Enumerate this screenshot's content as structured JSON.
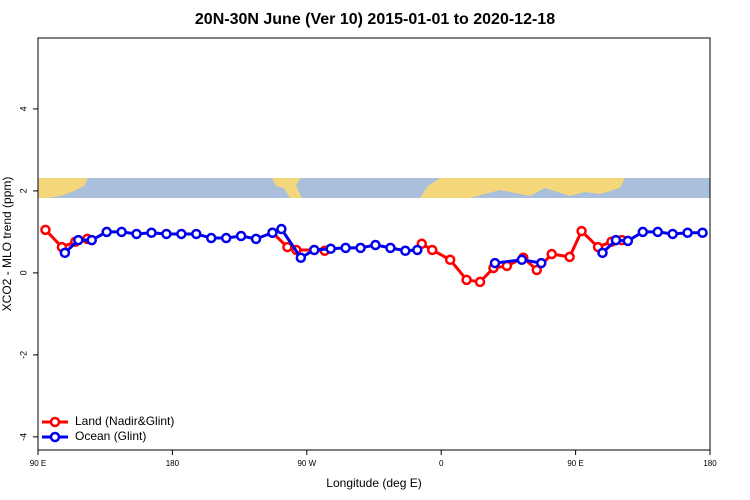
{
  "chart_data": {
    "type": "line",
    "title": "20N-30N June (Ver 10)   2015-01-01 to 2020-12-18",
    "xlabel": "Longitude (deg E)",
    "ylabel": "XCO2 - MLO trend (ppm)",
    "xlim": [
      90,
      540
    ],
    "ylim": [
      -4.32,
      5.73
    ],
    "xticks": [
      {
        "value": 90,
        "label": "90 E"
      },
      180,
      {
        "value": 270,
        "label": "90 W"
      },
      {
        "value": 360,
        "label": "0"
      },
      {
        "value": 450,
        "label": "90 E"
      },
      {
        "value": 540,
        "label": "180"
      }
    ],
    "yticks": [
      -4,
      -2,
      0,
      2,
      4
    ],
    "legend": "bottom-left",
    "series": [
      {
        "name": "Land (Nadir&Glint)",
        "color": "#ff0000",
        "x": [
          95,
          106,
          115,
          123,
          null,
          247,
          257,
          263,
          275,
          282,
          null,
          347,
          354,
          366,
          377,
          386,
          395,
          404,
          415,
          424,
          434,
          446,
          454,
          465,
          474,
          481
        ],
        "values": [
          1.05,
          0.63,
          0.76,
          0.83,
          null,
          0.98,
          0.63,
          0.56,
          0.56,
          0.54,
          null,
          0.71,
          0.56,
          0.32,
          -0.17,
          -0.22,
          0.12,
          0.17,
          0.37,
          0.07,
          0.46,
          0.39,
          1.02,
          0.63,
          0.76,
          0.8
        ]
      },
      {
        "name": "Ocean (Glint)",
        "color": "#0000ee",
        "x": [
          108,
          117,
          126,
          136,
          146,
          156,
          166,
          176,
          186,
          196,
          206,
          216,
          226,
          236,
          247,
          253,
          266,
          275,
          286,
          296,
          306,
          316,
          326,
          336,
          344,
          null,
          396,
          414,
          427,
          null,
          468,
          477,
          485,
          495,
          505,
          515,
          525,
          535
        ],
        "values": [
          0.49,
          0.8,
          0.8,
          1.0,
          1.0,
          0.95,
          0.98,
          0.95,
          0.95,
          0.95,
          0.85,
          0.85,
          0.9,
          0.83,
          0.98,
          1.07,
          0.37,
          0.56,
          0.59,
          0.61,
          0.61,
          0.68,
          0.61,
          0.54,
          0.56,
          null,
          0.24,
          0.32,
          0.24,
          null,
          0.49,
          0.8,
          0.78,
          1.0,
          1.0,
          0.95,
          0.98,
          0.98
        ]
      }
    ]
  }
}
